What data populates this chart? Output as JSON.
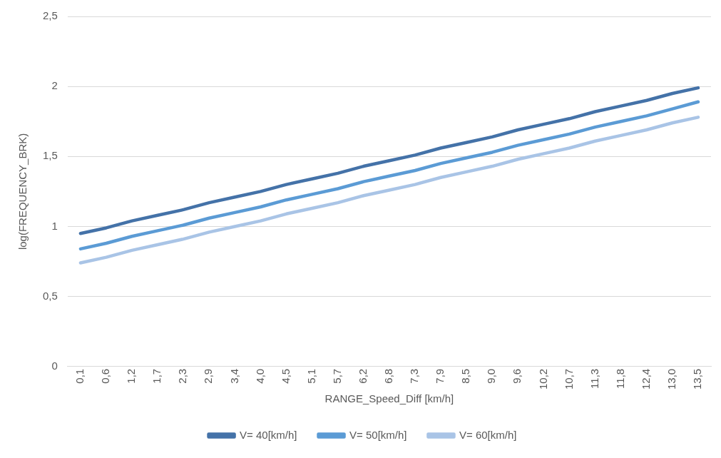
{
  "chart_data": {
    "type": "line",
    "xlabel": "RANGE_Speed_Diff [km/h]",
    "ylabel": "log(FREQUENCY_BRK)",
    "categories": [
      "0,1",
      "0,6",
      "1,2",
      "1,7",
      "2,3",
      "2,9",
      "3,4",
      "4,0",
      "4,5",
      "5,1",
      "5,7",
      "6,2",
      "6,8",
      "7,3",
      "7,9",
      "8,5",
      "9,0",
      "9,6",
      "10,2",
      "10,7",
      "11,3",
      "11,8",
      "12,4",
      "13,0",
      "13,5"
    ],
    "series": [
      {
        "name": "V= 40[km/h]",
        "color": "#4472a8",
        "values": [
          0.95,
          0.99,
          1.04,
          1.08,
          1.12,
          1.17,
          1.21,
          1.25,
          1.3,
          1.34,
          1.38,
          1.43,
          1.47,
          1.51,
          1.56,
          1.6,
          1.64,
          1.69,
          1.73,
          1.77,
          1.82,
          1.86,
          1.9,
          1.95,
          1.99
        ]
      },
      {
        "name": "V= 50[km/h]",
        "color": "#5b9bd5",
        "values": [
          0.84,
          0.88,
          0.93,
          0.97,
          1.01,
          1.06,
          1.1,
          1.14,
          1.19,
          1.23,
          1.27,
          1.32,
          1.36,
          1.4,
          1.45,
          1.49,
          1.53,
          1.58,
          1.62,
          1.66,
          1.71,
          1.75,
          1.79,
          1.84,
          1.89
        ]
      },
      {
        "name": "V= 60[km/h]",
        "color": "#a9c4e6",
        "values": [
          0.74,
          0.78,
          0.83,
          0.87,
          0.91,
          0.96,
          1.0,
          1.04,
          1.09,
          1.13,
          1.17,
          1.22,
          1.26,
          1.3,
          1.35,
          1.39,
          1.43,
          1.48,
          1.52,
          1.56,
          1.61,
          1.65,
          1.69,
          1.74,
          1.78
        ]
      }
    ],
    "ylim": [
      0,
      2.5
    ],
    "yticks": [
      0,
      {
        "value": 0.5,
        "label": "0,5"
      },
      1,
      {
        "value": 1.5,
        "label": "1,5"
      },
      2,
      {
        "value": 2.5,
        "label": "2,5"
      }
    ],
    "grid": "y",
    "legend": "bottom",
    "marker": "none",
    "line_style": "solid"
  }
}
